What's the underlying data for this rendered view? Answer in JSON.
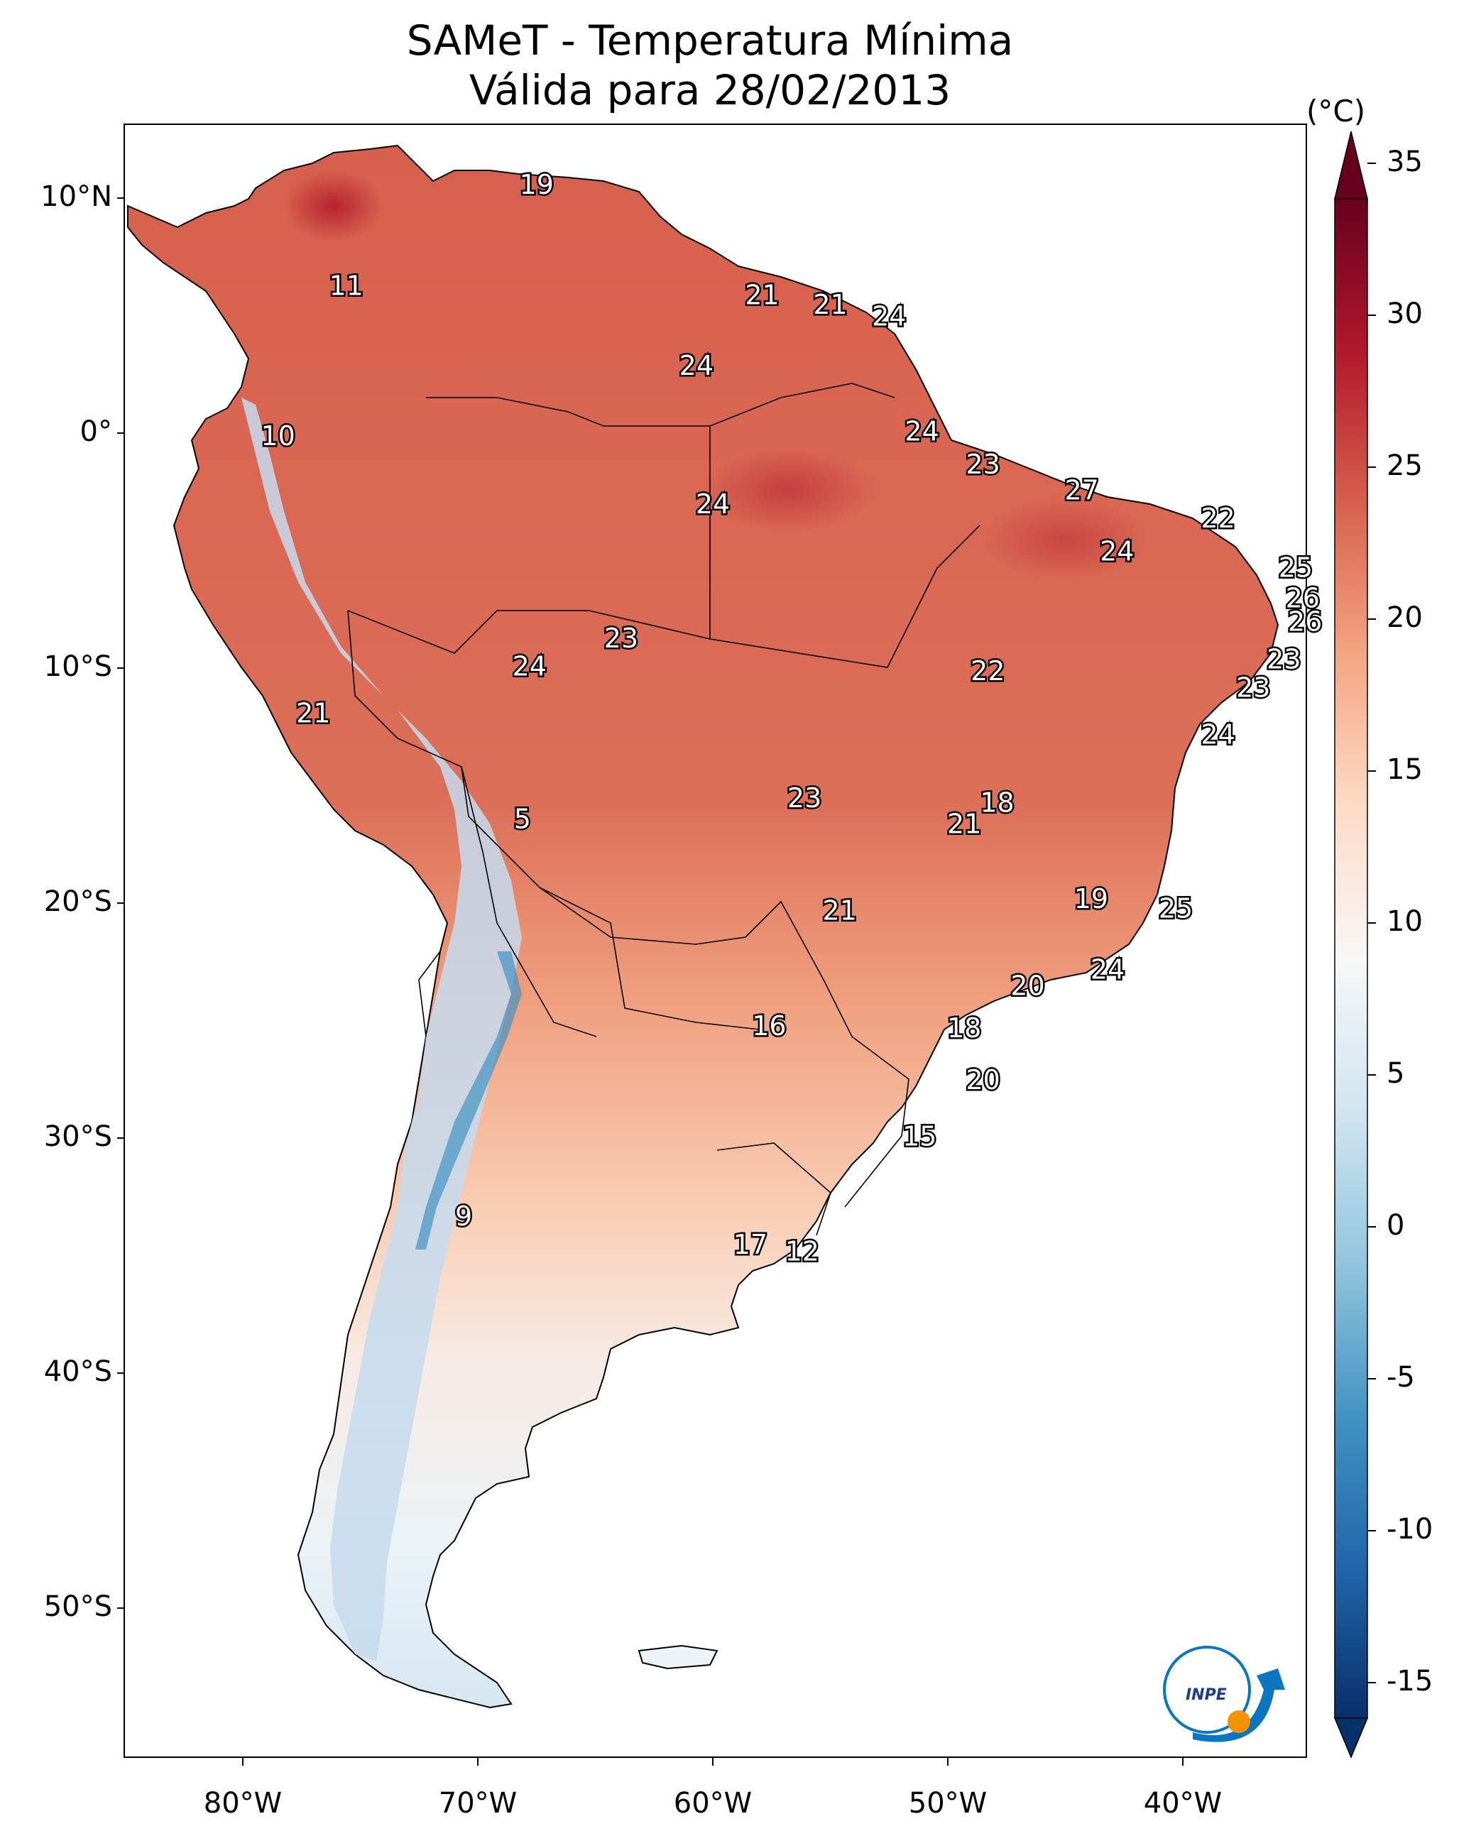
{
  "title": {
    "line1": "SAMeT - Temperatura Mínima",
    "line2": "Válida para 28/02/2013"
  },
  "axes": {
    "lat_ticks": [
      "10°N",
      "0°",
      "10°S",
      "20°S",
      "30°S",
      "40°S",
      "50°S"
    ],
    "lon_ticks": [
      "80°W",
      "70°W",
      "60°W",
      "50°W",
      "40°W"
    ]
  },
  "colorbar": {
    "unit": "(°C)",
    "ticks": [
      "35",
      "30",
      "25",
      "20",
      "15",
      "10",
      "5",
      "0",
      "-5",
      "-10",
      "-15"
    ],
    "range": [
      -15,
      35
    ],
    "colormap": [
      "#08306b",
      "#2166ac",
      "#4393c3",
      "#92c5de",
      "#d1e5f0",
      "#f7f7f7",
      "#fddbc7",
      "#f4a582",
      "#d6604d",
      "#b2182b",
      "#67001f"
    ]
  },
  "logo": {
    "text": "INPE"
  },
  "city_labels": [
    {
      "value": "19",
      "lon": -67.5,
      "lat": 10.5
    },
    {
      "value": "21",
      "lon": -57.9,
      "lat": 5.8
    },
    {
      "value": "21",
      "lon": -55.0,
      "lat": 5.4
    },
    {
      "value": "24",
      "lon": -52.5,
      "lat": 4.9
    },
    {
      "value": "11",
      "lon": -75.6,
      "lat": 6.2
    },
    {
      "value": "24",
      "lon": -60.7,
      "lat": 2.8
    },
    {
      "value": "10",
      "lon": -78.5,
      "lat": -0.2
    },
    {
      "value": "24",
      "lon": -51.1,
      "lat": 0.0
    },
    {
      "value": "23",
      "lon": -48.5,
      "lat": -1.4
    },
    {
      "value": "24",
      "lon": -60.0,
      "lat": -3.1
    },
    {
      "value": "27",
      "lon": -44.3,
      "lat": -2.5
    },
    {
      "value": "22",
      "lon": -38.5,
      "lat": -3.7
    },
    {
      "value": "24",
      "lon": -42.8,
      "lat": -5.1
    },
    {
      "value": "25",
      "lon": -35.2,
      "lat": -5.8
    },
    {
      "value": "26",
      "lon": -34.9,
      "lat": -7.1
    },
    {
      "value": "26",
      "lon": -34.8,
      "lat": -8.1
    },
    {
      "value": "23",
      "lon": -63.9,
      "lat": -8.8
    },
    {
      "value": "24",
      "lon": -67.8,
      "lat": -10.0
    },
    {
      "value": "22",
      "lon": -48.3,
      "lat": -10.2
    },
    {
      "value": "23",
      "lon": -35.7,
      "lat": -9.7
    },
    {
      "value": "23",
      "lon": -37.0,
      "lat": -10.9
    },
    {
      "value": "21",
      "lon": -77.0,
      "lat": -12.0
    },
    {
      "value": "24",
      "lon": -38.5,
      "lat": -12.9
    },
    {
      "value": "5",
      "lon": -68.1,
      "lat": -16.5
    },
    {
      "value": "23",
      "lon": -56.1,
      "lat": -15.6
    },
    {
      "value": "18",
      "lon": -47.9,
      "lat": -15.8
    },
    {
      "value": "21",
      "lon": -49.3,
      "lat": -16.7
    },
    {
      "value": "19",
      "lon": -43.9,
      "lat": -19.9
    },
    {
      "value": "25",
      "lon": -40.3,
      "lat": -20.3
    },
    {
      "value": "21",
      "lon": -54.6,
      "lat": -20.4
    },
    {
      "value": "24",
      "lon": -43.2,
      "lat": -22.9
    },
    {
      "value": "20",
      "lon": -46.6,
      "lat": -23.6
    },
    {
      "value": "16",
      "lon": -57.6,
      "lat": -25.3
    },
    {
      "value": "18",
      "lon": -49.3,
      "lat": -25.4
    },
    {
      "value": "20",
      "lon": -48.5,
      "lat": -27.6
    },
    {
      "value": "15",
      "lon": -51.2,
      "lat": -30.0
    },
    {
      "value": "9",
      "lon": -70.6,
      "lat": -33.4
    },
    {
      "value": "17",
      "lon": -58.4,
      "lat": -34.6
    },
    {
      "value": "12",
      "lon": -56.2,
      "lat": -34.9
    }
  ]
}
